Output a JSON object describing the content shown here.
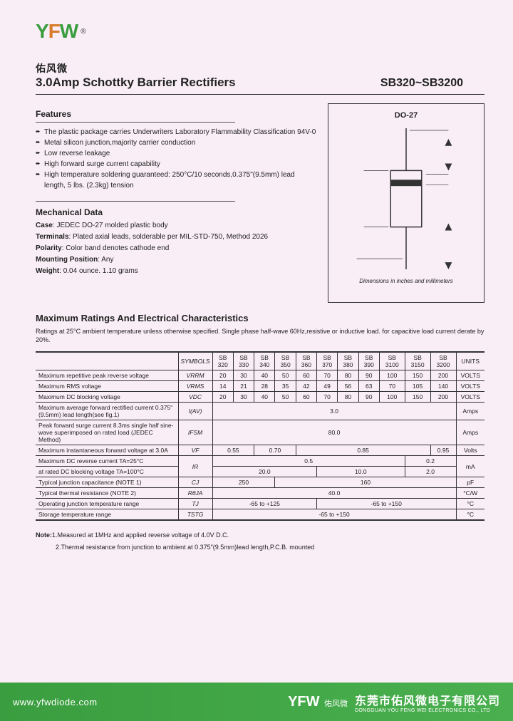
{
  "logo": {
    "letters": "YFW",
    "trademark": "®",
    "cn": "佑风微"
  },
  "title": "3.0Amp Schottky Barrier Rectifiers",
  "part_range": "SB320~SB3200",
  "features": {
    "heading": "Features",
    "items": [
      "The plastic package carries Underwriters Laboratory Flammability Classification 94V-0",
      "Metal silicon junction,majority carrier conduction",
      "Low reverse leakage",
      "High forward surge current capability",
      "High temperature soldering guaranteed: 250°C/10 seconds,0.375\"(9.5mm) lead length, 5 lbs. (2.3kg) tension"
    ]
  },
  "mechanical": {
    "heading": "Mechanical  Data",
    "rows": [
      {
        "label": "Case",
        "value": ": JEDEC DO-27 molded plastic body"
      },
      {
        "label": "Terminals",
        "value": ": Plated axial leads, solderable per MIL-STD-750, Method 2026"
      },
      {
        "label": "Polarity",
        "value": ": Color band denotes cathode end"
      },
      {
        "label": "Mounting Position",
        "value": ": Any"
      },
      {
        "label": "Weight",
        "value": ": 0.04 ounce. 1.10 grams"
      }
    ]
  },
  "diagram": {
    "title": "DO-27",
    "caption": "Dimensions in inches and millimeters"
  },
  "ratings": {
    "heading": "Maximum Ratings And Electrical Characteristics",
    "sub": "Ratings at 25°C ambient temperature unless otherwise specified. Single phase half-wave 60Hz,resistive or inductive load. for capacitive load current derate by 20%.",
    "symbols_label": "SYMBOLS",
    "col_heads": [
      "SB 320",
      "SB 330",
      "SB 340",
      "SB 350",
      "SB 360",
      "SB 370",
      "SB 380",
      "SB 390",
      "SB 3100",
      "SB 3150",
      "SB 3200"
    ],
    "units_head": "UNITS",
    "rows": [
      {
        "param": "Maximum repetitive peak reverse voltage",
        "sym": "VRRM",
        "vals": [
          "20",
          "30",
          "40",
          "50",
          "60",
          "70",
          "80",
          "90",
          "100",
          "150",
          "200"
        ],
        "unit": "VOLTS"
      },
      {
        "param": "Maximum RMS voltage",
        "sym": "VRMS",
        "vals": [
          "14",
          "21",
          "28",
          "35",
          "42",
          "49",
          "56",
          "63",
          "70",
          "105",
          "140"
        ],
        "unit": "VOLTS"
      },
      {
        "param": "Maximum DC blocking voltage",
        "sym": "VDC",
        "vals": [
          "20",
          "30",
          "40",
          "50",
          "60",
          "70",
          "80",
          "90",
          "100",
          "150",
          "200"
        ],
        "unit": "VOLTS"
      },
      {
        "param": "Maximum average forward rectified current 0.375\"(9.5mm) lead length(see fig.1)",
        "sym": "I(AV)",
        "span": "3.0",
        "unit": "Amps"
      },
      {
        "param": "Peak forward surge current 8.3ms single half sine-wave superimposed on rated load (JEDEC Method)",
        "sym": "IFSM",
        "span": "80.0",
        "unit": "Amps"
      },
      {
        "param": "Maximum instantaneous forward voltage at 3.0A",
        "sym": "VF",
        "groups": [
          [
            "0.55",
            2
          ],
          [
            "0.70",
            2
          ],
          [
            "0.85",
            6
          ],
          [
            "0.95",
            1
          ]
        ],
        "unit": "Volts"
      },
      {
        "param": "Maximum DC reverse current    TA=25°C",
        "sym": "IR",
        "groups": [
          [
            "0.5",
            9
          ],
          [
            "0.2",
            2
          ]
        ],
        "unit": "mA",
        "rowspan2": true
      },
      {
        "param": "at rated DC blocking voltage     TA=100°C",
        "groups": [
          [
            "20.0",
            5
          ],
          [
            "10.0",
            4
          ],
          [
            "2.0",
            2
          ]
        ]
      },
      {
        "param": "Typical junction capacitance (NOTE 1)",
        "sym": "CJ",
        "groups": [
          [
            "250",
            3
          ],
          [
            "160",
            8
          ]
        ],
        "unit": "pF"
      },
      {
        "param": "Typical thermal resistance (NOTE 2)",
        "sym": "RθJA",
        "span": "40.0",
        "unit": "°C/W"
      },
      {
        "param": "Operating junction temperature range",
        "sym": "TJ",
        "groups": [
          [
            "-65 to +125",
            5
          ],
          [
            "-65 to +150",
            6
          ]
        ],
        "unit": "°C"
      },
      {
        "param": "Storage temperature range",
        "sym": "TSTG",
        "span": "-65 to +150",
        "unit": "°C"
      }
    ]
  },
  "notes": {
    "label": "Note:",
    "n1": "1.Measured at 1MHz and applied reverse voltage of 4.0V D.C.",
    "n2": "2.Thermal resistance from junction to ambient  at 0.375\"(9.5mm)lead length,P.C.B. mounted"
  },
  "footer": {
    "url": "www.yfwdiode.com",
    "logo": "YFW",
    "cn_brand": "佑风微",
    "cn_company": "东莞市佑风微电子有限公司",
    "en_company": "DONGGUAN YOU FENG WEI ELECTRONICS CO., LTD"
  }
}
